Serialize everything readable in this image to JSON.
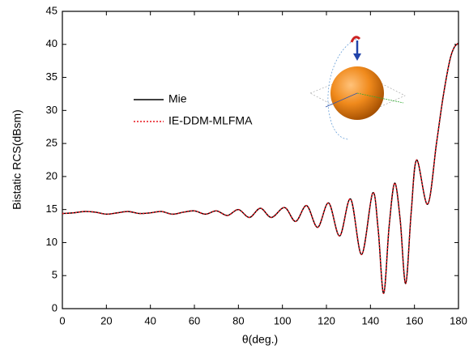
{
  "chart_data": {
    "type": "line",
    "xlabel": "θ(deg.)",
    "ylabel": "Bistatic RCS(dBsm)",
    "x": [
      0,
      5,
      10,
      15,
      20,
      25,
      30,
      35,
      40,
      45,
      50,
      55,
      60,
      65,
      70,
      75,
      80,
      85,
      90,
      95,
      101,
      106,
      111,
      116,
      121,
      126,
      131,
      136,
      141,
      143.5,
      146,
      148.5,
      151,
      153.5,
      156,
      158.5,
      161,
      166,
      170,
      173,
      176,
      178,
      180
    ],
    "series": [
      {
        "name": "Mie",
        "color": "#000000",
        "dash": "solid",
        "values": [
          14.4,
          14.5,
          14.7,
          14.6,
          14.3,
          14.5,
          14.7,
          14.4,
          14.5,
          14.7,
          14.3,
          14.6,
          14.8,
          14.3,
          14.8,
          14.1,
          15.0,
          13.8,
          15.2,
          13.8,
          15.3,
          13.2,
          15.6,
          12.3,
          16.0,
          11.0,
          16.6,
          8.2,
          17.5,
          12.0,
          2.3,
          12.5,
          19.0,
          13.5,
          3.8,
          14.5,
          22.5,
          15.8,
          25.0,
          32.0,
          37.5,
          39.5,
          40.2
        ]
      },
      {
        "name": "IE-DDM-MLFMA",
        "color": "#e8141c",
        "dash": "dotted",
        "values": [
          14.4,
          14.5,
          14.7,
          14.6,
          14.3,
          14.5,
          14.7,
          14.4,
          14.5,
          14.7,
          14.3,
          14.6,
          14.8,
          14.3,
          14.8,
          14.1,
          15.0,
          13.8,
          15.2,
          13.8,
          15.3,
          13.2,
          15.6,
          12.3,
          16.0,
          11.0,
          16.6,
          8.2,
          17.5,
          12.0,
          2.3,
          12.5,
          19.0,
          13.5,
          3.8,
          14.5,
          22.5,
          15.8,
          25.0,
          32.0,
          37.5,
          39.5,
          40.2
        ]
      }
    ],
    "xlim": [
      0,
      180
    ],
    "xticks": [
      0,
      20,
      40,
      60,
      80,
      100,
      120,
      140,
      160,
      180
    ],
    "ylim": [
      0,
      45
    ],
    "yticks": [
      0,
      5,
      10,
      15,
      20,
      25,
      30,
      35,
      40,
      45
    ]
  }
}
